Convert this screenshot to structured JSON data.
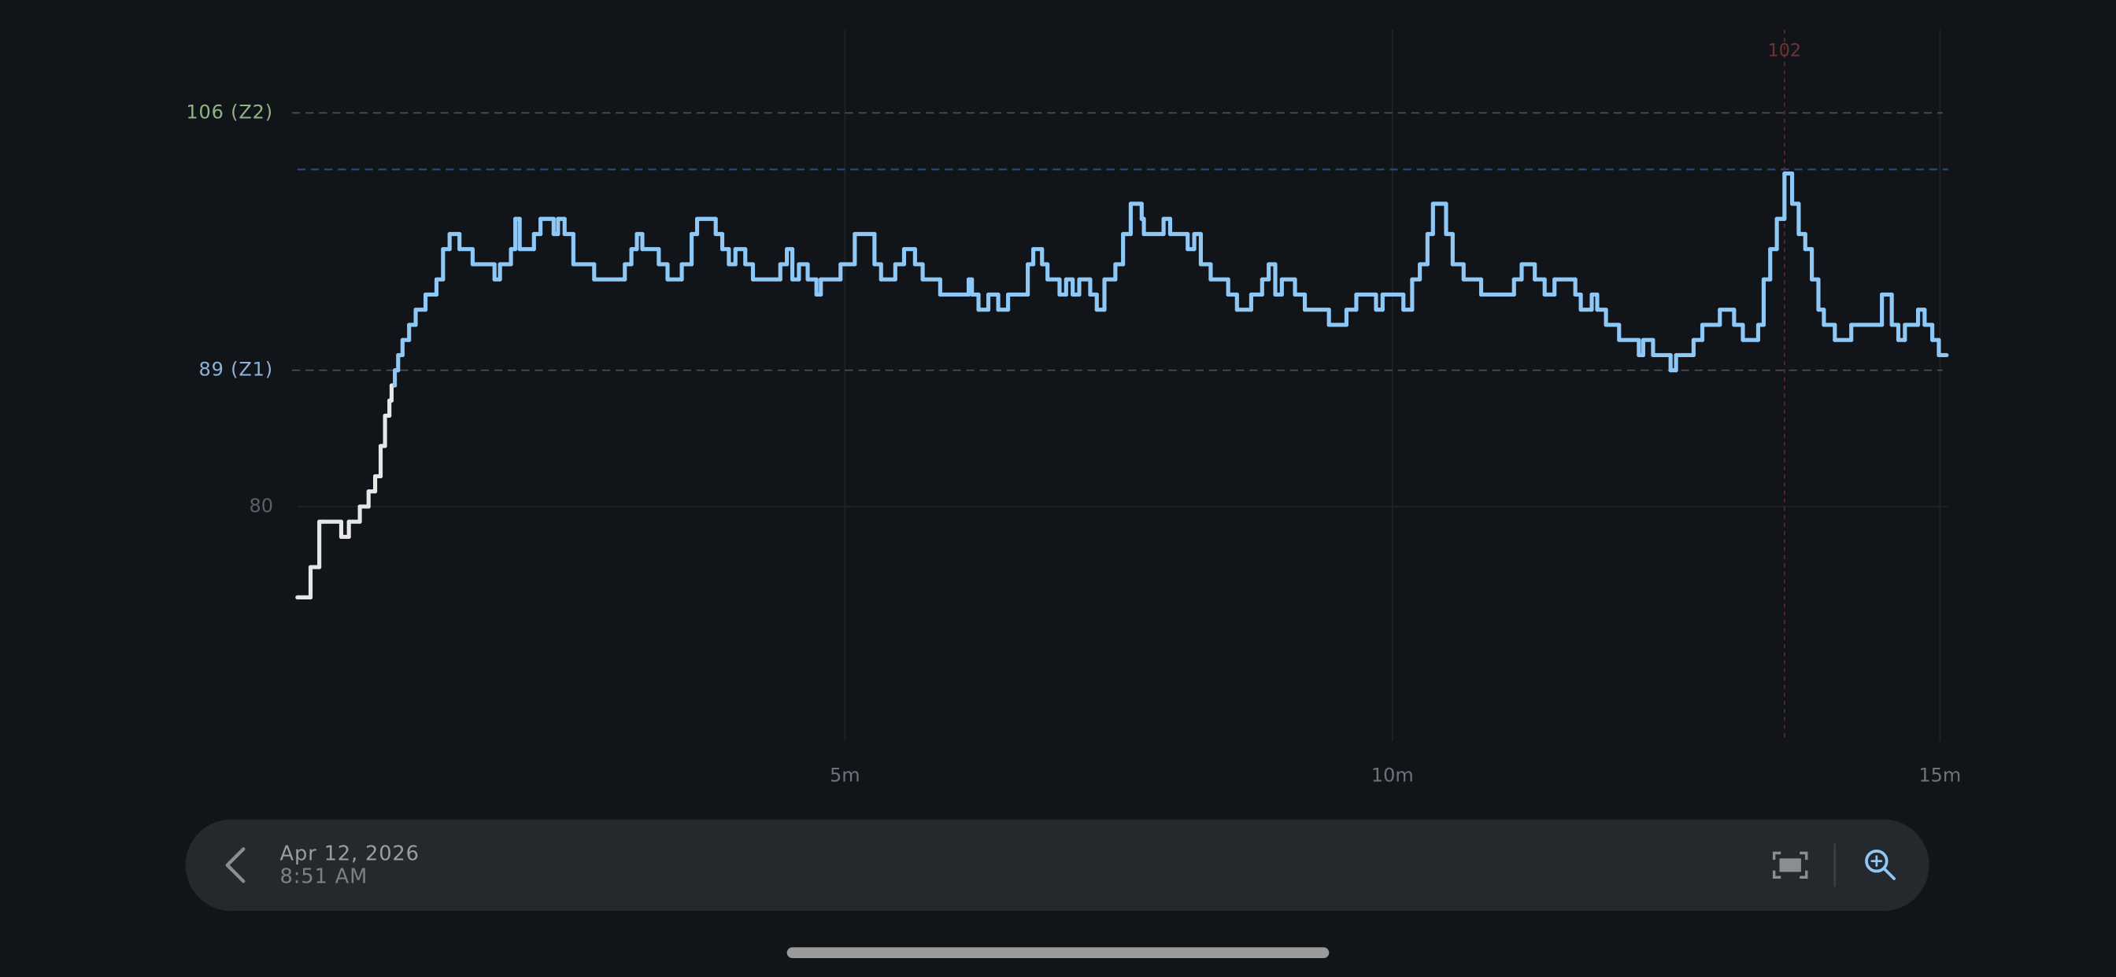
{
  "chart_data": {
    "type": "step",
    "xlim": [
      0,
      15
    ],
    "ylim": [
      64.5,
      111.5
    ],
    "xticks": [
      {
        "value": 5,
        "label": "5m"
      },
      {
        "value": 10,
        "label": "10m"
      },
      {
        "value": 15,
        "label": "15m"
      }
    ],
    "yticks": [
      80
    ],
    "zones": [
      {
        "value": 106,
        "label": "106 (Z2)",
        "color": "#8fb583"
      },
      {
        "value": 89,
        "label": "89 (Z1)",
        "color": "#8cb4dd"
      }
    ],
    "peak": {
      "x": 13.58,
      "value": 102
    },
    "series": [
      {
        "color": "#8ec8f6",
        "base_color": "#e6e6e6",
        "x": [
          0,
          0.12,
          0.2,
          0.23,
          0.4,
          0.47,
          0.57,
          0.65,
          0.71,
          0.76,
          0.8,
          0.84,
          0.86,
          0.89,
          0.92,
          0.96,
          1.02,
          1.08,
          1.17,
          1.27,
          1.33,
          1.39,
          1.48,
          1.6,
          1.8,
          1.85,
          1.95,
          1.99,
          2.03,
          2.16,
          2.22,
          2.34,
          2.38,
          2.44,
          2.52,
          2.71,
          2.99,
          3.05,
          3.1,
          3.15,
          3.3,
          3.38,
          3.51,
          3.6,
          3.65,
          3.82,
          3.88,
          3.94,
          4.0,
          4.09,
          4.16,
          4.41,
          4.47,
          4.52,
          4.58,
          4.66,
          4.74,
          4.78,
          4.96,
          5.09,
          5.27,
          5.33,
          5.46,
          5.54,
          5.64,
          5.71,
          5.87,
          6.13,
          6.16,
          6.22,
          6.31,
          6.4,
          6.49,
          6.67,
          6.72,
          6.8,
          6.85,
          6.96,
          7.02,
          7.08,
          7.14,
          7.24,
          7.3,
          7.37,
          7.47,
          7.54,
          7.61,
          7.71,
          7.73,
          7.91,
          7.97,
          8.13,
          8.19,
          8.25,
          8.34,
          8.5,
          8.58,
          8.71,
          8.81,
          8.87,
          8.93,
          8.99,
          9.11,
          9.2,
          9.42,
          9.58,
          9.67,
          9.85,
          9.91,
          10.1,
          10.18,
          10.25,
          10.32,
          10.37,
          10.49,
          10.55,
          10.65,
          10.81,
          11.11,
          11.18,
          11.3,
          11.39,
          11.48,
          11.67,
          11.72,
          11.82,
          11.87,
          11.95,
          12.07,
          12.25,
          12.29,
          12.38,
          12.54,
          12.59,
          12.75,
          12.83,
          12.99,
          13.12,
          13.2,
          13.34,
          13.39,
          13.45,
          13.51,
          13.58,
          13.65,
          13.71,
          13.77,
          13.83,
          13.89,
          13.94,
          14.04,
          14.19,
          14.47,
          14.56,
          14.62,
          14.68,
          14.8,
          14.86,
          14.93,
          14.99,
          15.06
        ],
        "values": [
          74,
          76,
          79,
          79,
          78,
          79,
          80,
          81,
          82,
          84,
          86,
          87,
          88,
          89,
          90,
          91,
          92,
          93,
          94,
          95,
          97,
          98,
          97,
          96,
          95,
          96,
          97,
          99,
          97,
          98,
          99,
          98,
          99,
          98,
          96,
          95,
          96,
          97,
          98,
          97,
          96,
          95,
          96,
          98,
          99,
          98,
          97,
          96,
          97,
          96,
          95,
          96,
          97,
          95,
          96,
          95,
          94,
          95,
          96,
          98,
          96,
          95,
          96,
          97,
          96,
          95,
          94,
          95,
          94,
          93,
          94,
          93,
          94,
          96,
          97,
          96,
          95,
          94,
          95,
          94,
          95,
          94,
          93,
          95,
          96,
          98,
          100,
          99,
          98,
          99,
          98,
          97,
          98,
          96,
          95,
          94,
          93,
          94,
          95,
          96,
          94,
          95,
          94,
          93,
          92,
          93,
          94,
          93,
          94,
          93,
          95,
          96,
          98,
          100,
          98,
          96,
          95,
          94,
          95,
          96,
          95,
          94,
          95,
          94,
          93,
          94,
          93,
          92,
          91,
          90,
          91,
          90,
          89,
          90,
          91,
          92,
          93,
          92,
          91,
          92,
          95,
          97,
          99,
          102,
          100,
          98,
          97,
          95,
          93,
          92,
          91,
          92,
          94,
          92,
          91,
          92,
          93,
          92,
          91,
          90,
          90
        ]
      }
    ]
  },
  "footer": {
    "date": "Apr 12, 2026",
    "time": "8:51 AM"
  }
}
